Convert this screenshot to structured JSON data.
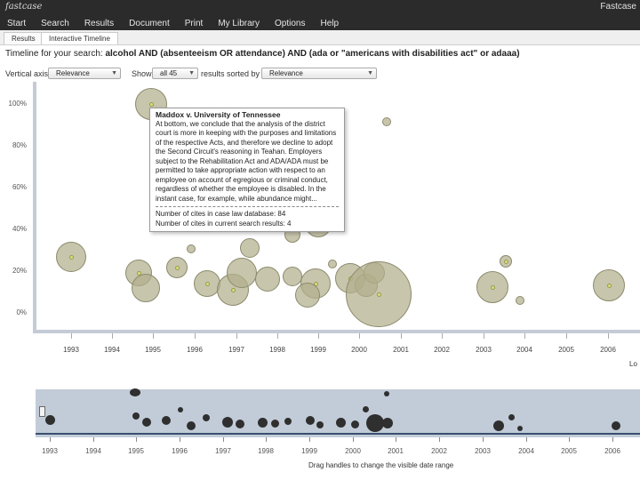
{
  "app": {
    "logo_text": "fastcase",
    "top_right": "Fastcase"
  },
  "menu": [
    "Start",
    "Search",
    "Results",
    "Document",
    "Print",
    "My Library",
    "Options",
    "Help"
  ],
  "tabs": [
    "Results",
    "Interactive Timeline"
  ],
  "query": {
    "prefix": "Timeline for your search:",
    "text": "alcohol AND (absenteeism OR attendance) AND (ada or \"americans with disabilities act\" or adaaa)"
  },
  "controls": {
    "vertical_axis_label": "Vertical axis",
    "vertical_axis_value": "Relevance",
    "show_label": "Show",
    "show_value": "all 45",
    "sorted_label": "results sorted by",
    "sorted_value": "Relevance"
  },
  "y_ticks": [
    "100%",
    "80%",
    "60%",
    "40%",
    "20%",
    "0%"
  ],
  "x_ticks": [
    "1993",
    "1994",
    "1995",
    "1996",
    "1997",
    "1998",
    "1999",
    "2000",
    "2001",
    "2002",
    "2003",
    "2004",
    "2005",
    "2006"
  ],
  "axis_corner_label": "Lo",
  "tooltip": {
    "title": "Maddox v. University of Tennessee",
    "body": "At bottom, we conclude that the analysis of the district court is more in keeping with the purposes and limitations of the respective Acts, and therefore we decline to adopt the Second Circuit's reasoning in Teahan. Employers subject to the Rehabilitation Act and ADA/ADA must be permitted to take appropriate action with respect to an employee on account of egregious or criminal conduct, regardless of whether the employee is disabled. In the instant case, for example, while abundance might...",
    "cites_db": "Number of cites in case law database: 84",
    "cites_search": "Number of cites in current search results: 4"
  },
  "overview": {
    "x_ticks": [
      "1993",
      "1994",
      "1995",
      "1996",
      "1997",
      "1998",
      "1999",
      "2000",
      "2001",
      "2002",
      "2003",
      "2004",
      "2005",
      "2006"
    ],
    "hint": "Drag handles to change the visible date range"
  },
  "colors": {
    "bubble_fill": "#b2ae8c",
    "topbar": "#2b2b2b",
    "overview_bg": "#c2ccd8"
  }
}
